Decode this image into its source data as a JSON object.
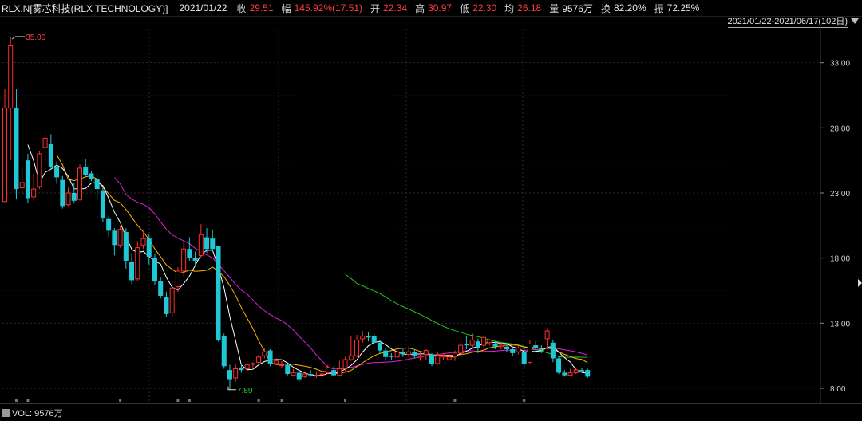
{
  "header": {
    "ticker": "RLX.N[雾芯科技(RLX TECHNOLOGY)]",
    "date": "2021/01/22",
    "close_label": "收",
    "close_value": "29.51",
    "change_label": "幅",
    "change_value": "145.92%(17.51)",
    "open_label": "开",
    "open_value": "22.34",
    "high_label": "高",
    "high_value": "30.97",
    "low_label": "低",
    "low_value": "22.30",
    "avg_label": "均",
    "avg_value": "26.18",
    "volume_label": "量",
    "volume_value": "9576万",
    "turnover_label": "换",
    "turnover_value": "82.20%",
    "amplitude_label": "振",
    "amplitude_value": "72.25%"
  },
  "range_selector": {
    "label": "2021/01/22-2021/06/17(102日)"
  },
  "volume_panel": {
    "label": "VOL: 9576万"
  },
  "colors": {
    "up": "#ff2e2e",
    "down": "#1fc8d4",
    "ma5": "#ffffff",
    "ma10": "#ffb400",
    "ma20": "#e020e0",
    "ma60": "#1ec81e",
    "grid": "#1a1a1a"
  },
  "chart_data": {
    "type": "candlestick",
    "ylim": [
      7,
      36
    ],
    "y_ticks": [
      "33.00",
      "28.00",
      "23.00",
      "18.00",
      "13.00",
      "8.00"
    ],
    "y_tick_values": [
      33,
      28,
      23,
      18,
      13,
      8
    ],
    "annotations": {
      "high": "35.00",
      "low": "7.89"
    },
    "indicators": [
      "MA5",
      "MA10",
      "MA20",
      "MA60"
    ],
    "candles": [
      [
        22.34,
        29.51,
        30.97,
        22.3
      ],
      [
        29.51,
        34.3,
        35.0,
        25.5
      ],
      [
        29.5,
        23.3,
        31.0,
        22.5
      ],
      [
        23.4,
        23.8,
        25.0,
        22.9
      ],
      [
        25.5,
        22.6,
        26.0,
        22.2
      ],
      [
        22.7,
        23.3,
        24.5,
        22.4
      ],
      [
        23.5,
        26.0,
        26.2,
        23.3
      ],
      [
        26.5,
        27.2,
        27.6,
        25.2
      ],
      [
        26.8,
        25.0,
        27.5,
        24.8
      ],
      [
        25.0,
        24.2,
        25.4,
        23.7
      ],
      [
        24.0,
        22.0,
        24.3,
        21.8
      ],
      [
        22.1,
        23.0,
        23.4,
        22.0
      ],
      [
        23.0,
        22.4,
        23.8,
        22.2
      ],
      [
        22.5,
        24.9,
        25.2,
        22.4
      ],
      [
        25.0,
        24.4,
        25.6,
        24.2
      ],
      [
        24.5,
        24.1,
        24.7,
        23.9
      ],
      [
        24.1,
        23.3,
        24.5,
        22.5
      ],
      [
        23.2,
        21.1,
        23.5,
        20.8
      ],
      [
        21.0,
        20.1,
        21.2,
        19.6
      ],
      [
        20.1,
        19.0,
        20.3,
        18.2
      ],
      [
        19.0,
        20.2,
        20.5,
        18.8
      ],
      [
        20.0,
        17.8,
        20.3,
        17.2
      ],
      [
        17.7,
        16.3,
        18.3,
        16.0
      ],
      [
        16.4,
        18.8,
        19.3,
        16.2
      ],
      [
        19.0,
        19.5,
        20.1,
        18.7
      ],
      [
        19.5,
        18.1,
        19.8,
        17.5
      ],
      [
        18.0,
        16.2,
        18.3,
        15.9
      ],
      [
        16.2,
        15.1,
        16.5,
        14.9
      ],
      [
        15.0,
        13.7,
        15.4,
        13.5
      ],
      [
        13.8,
        15.7,
        16.2,
        13.5
      ],
      [
        15.8,
        17.0,
        17.3,
        15.4
      ],
      [
        17.0,
        18.7,
        19.3,
        16.6
      ],
      [
        18.7,
        18.0,
        19.6,
        17.8
      ],
      [
        18.0,
        17.8,
        18.5,
        17.4
      ],
      [
        18.2,
        19.8,
        20.6,
        18.0
      ],
      [
        19.6,
        18.7,
        20.3,
        18.4
      ],
      [
        19.5,
        18.7,
        20.2,
        18.5
      ],
      [
        18.9,
        11.7,
        12.5,
        11.6
      ],
      [
        12.0,
        9.7,
        12.2,
        9.5
      ],
      [
        9.4,
        8.7,
        9.8,
        7.89
      ],
      [
        8.8,
        9.5,
        9.9,
        8.5
      ],
      [
        9.6,
        9.4,
        9.9,
        9.2
      ],
      [
        9.5,
        9.8,
        10.1,
        9.4
      ],
      [
        9.9,
        9.9,
        10.0,
        9.6
      ],
      [
        10.0,
        10.4,
        10.6,
        9.8
      ],
      [
        10.5,
        10.8,
        11.1,
        10.3
      ],
      [
        10.9,
        9.9,
        11.0,
        9.7
      ],
      [
        9.9,
        10.1,
        10.3,
        9.8
      ],
      [
        9.8,
        9.8,
        10.1,
        9.6
      ],
      [
        9.8,
        9.1,
        9.9,
        9.0
      ],
      [
        9.0,
        9.2,
        9.5,
        8.9
      ],
      [
        9.2,
        8.7,
        9.3,
        8.5
      ],
      [
        8.9,
        9.1,
        9.3,
        8.8
      ],
      [
        9.1,
        9.0,
        9.4,
        8.9
      ],
      [
        9.0,
        9.0,
        9.3,
        8.8
      ],
      [
        9.1,
        9.1,
        9.3,
        9.0
      ],
      [
        9.2,
        9.6,
        9.8,
        9.1
      ],
      [
        9.4,
        9.0,
        9.7,
        8.9
      ],
      [
        9.0,
        9.5,
        10.1,
        8.9
      ],
      [
        9.5,
        10.2,
        10.4,
        9.3
      ],
      [
        10.2,
        10.5,
        12.0,
        10.1
      ],
      [
        10.5,
        11.7,
        12.1,
        10.4
      ],
      [
        11.8,
        12.0,
        12.4,
        11.5
      ],
      [
        12.0,
        11.9,
        12.3,
        11.6
      ],
      [
        12.0,
        11.5,
        12.2,
        11.4
      ],
      [
        11.5,
        10.9,
        11.7,
        10.7
      ],
      [
        10.9,
        10.4,
        11.1,
        10.2
      ],
      [
        10.5,
        10.4,
        10.7,
        10.2
      ],
      [
        10.4,
        10.8,
        11.0,
        10.3
      ],
      [
        10.8,
        10.6,
        11.0,
        10.4
      ],
      [
        10.6,
        10.8,
        11.2,
        10.4
      ],
      [
        10.8,
        10.5,
        11.0,
        10.3
      ],
      [
        10.4,
        10.5,
        10.8,
        10.1
      ],
      [
        10.6,
        10.9,
        11.0,
        10.2
      ],
      [
        10.6,
        9.9,
        10.7,
        9.7
      ],
      [
        9.9,
        10.5,
        10.8,
        9.8
      ],
      [
        10.4,
        10.5,
        10.7,
        10.2
      ],
      [
        10.2,
        10.4,
        10.7,
        10.0
      ],
      [
        10.4,
        10.7,
        10.9,
        10.1
      ],
      [
        10.7,
        11.3,
        11.5,
        10.5
      ],
      [
        11.4,
        11.3,
        12.0,
        11.0
      ],
      [
        11.3,
        11.7,
        12.2,
        11.1
      ],
      [
        11.6,
        11.1,
        11.8,
        10.7
      ],
      [
        11.3,
        11.9,
        12.0,
        11.1
      ],
      [
        11.5,
        11.7,
        11.8,
        11.3
      ],
      [
        11.4,
        11.2,
        11.6,
        11.0
      ],
      [
        11.2,
        11.3,
        11.5,
        11.0
      ],
      [
        11.2,
        11.0,
        11.3,
        10.8
      ],
      [
        11.0,
        10.7,
        11.1,
        10.5
      ],
      [
        10.8,
        11.1,
        11.3,
        10.6
      ],
      [
        10.8,
        9.9,
        11.2,
        9.6
      ],
      [
        10.0,
        11.4,
        11.7,
        9.9
      ],
      [
        11.3,
        11.1,
        11.6,
        10.9
      ],
      [
        11.0,
        10.9,
        11.3,
        10.7
      ],
      [
        11.8,
        12.4,
        12.6,
        11.0
      ],
      [
        11.5,
        10.3,
        11.7,
        10.0
      ],
      [
        10.3,
        9.2,
        10.5,
        9.1
      ],
      [
        9.2,
        9.0,
        9.4,
        8.9
      ],
      [
        9.0,
        9.2,
        9.5,
        8.9
      ],
      [
        9.2,
        9.4,
        9.6,
        9.1
      ],
      [
        9.4,
        9.3,
        9.6,
        9.2
      ],
      [
        9.4,
        8.9,
        9.5,
        8.8
      ]
    ]
  }
}
